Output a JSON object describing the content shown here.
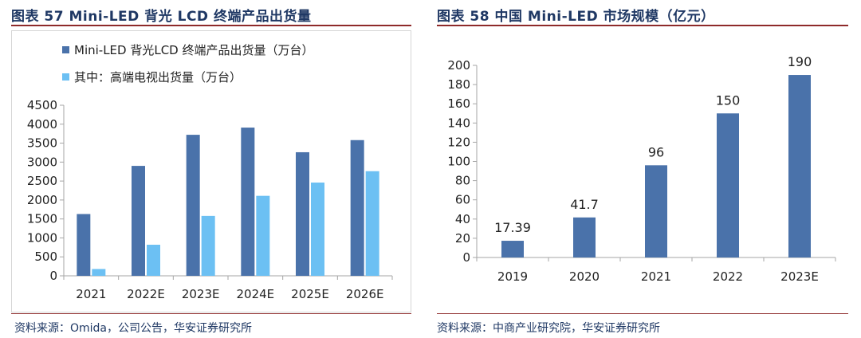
{
  "left": {
    "title": "图表 57 Mini-LED 背光 LCD 终端产品出货量",
    "source": "资料来源：Omida，公司公告，华安证券研究所"
  },
  "right": {
    "title": "图表 58 中国 Mini-LED 市场规模（亿元）",
    "source": "资料来源：中商产业研究院，华安证券研究所"
  },
  "colors": {
    "dark": "#4a72aa",
    "light": "#6cc0f3",
    "axis": "#a6a6a6",
    "accent": "#1f3864"
  },
  "chart_data": [
    {
      "type": "bar",
      "title": "Mini-LED 背光LCD终端产品出货量",
      "categories": [
        "2021",
        "2022E",
        "2023E",
        "2024E",
        "2025E",
        "2026E"
      ],
      "series": [
        {
          "name": "Mini-LED 背光LCD 终端产品出货量（万台）",
          "values": [
            1630,
            2900,
            3720,
            3910,
            3260,
            3580
          ]
        },
        {
          "name": "其中：高端电视出货量（万台）",
          "values": [
            180,
            820,
            1580,
            2110,
            2460,
            2760
          ]
        }
      ],
      "yticks": [
        "0",
        "500",
        "1000",
        "1500",
        "2000",
        "2500",
        "3000",
        "3500",
        "4000",
        "4500"
      ],
      "ylim": [
        0,
        4500
      ],
      "xlabel": "",
      "ylabel": ""
    },
    {
      "type": "bar",
      "title": "中国 Mini-LED 市场规模（亿元）",
      "categories": [
        "2019",
        "2020",
        "2021",
        "2022",
        "2023E"
      ],
      "values": [
        17.39,
        41.7,
        96,
        150,
        190
      ],
      "labels": [
        "17.39",
        "41.7",
        "96",
        "150",
        "190"
      ],
      "yticks": [
        "0",
        "20",
        "40",
        "60",
        "80",
        "100",
        "120",
        "140",
        "160",
        "180",
        "200"
      ],
      "ylim": [
        0,
        200
      ],
      "xlabel": "",
      "ylabel": ""
    }
  ]
}
